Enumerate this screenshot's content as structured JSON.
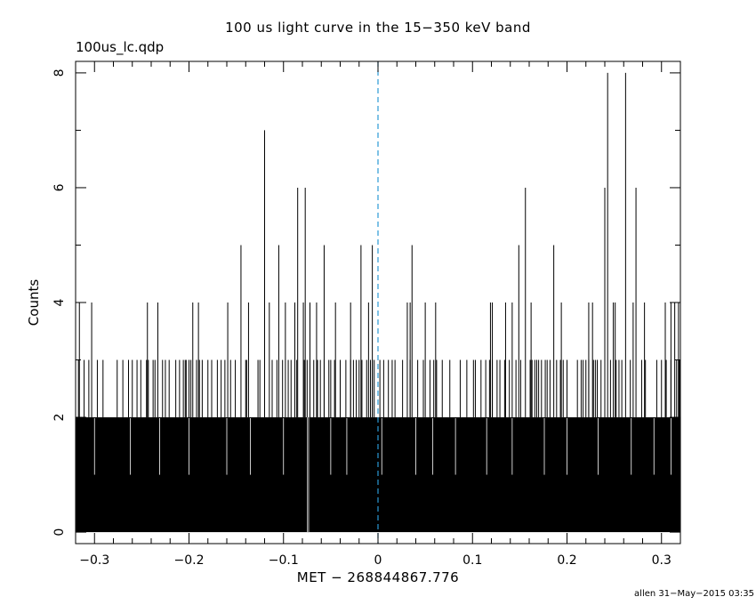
{
  "header": {
    "title": "100 us light curve in the 15−350 keV band",
    "subtitle": "100us_lc.qdp"
  },
  "footer": {
    "credit": "allen 31−May−2015 03:35"
  },
  "chart_data": {
    "type": "bar",
    "title": "100 us light curve in the 15−350 keV band",
    "subtitle": "100us_lc.qdp",
    "xlabel": "MET − 268844867.776",
    "ylabel": "Counts",
    "xlim": [
      -0.32,
      0.32
    ],
    "ylim": [
      -0.2,
      8.2
    ],
    "x_ticks": [
      "−0.3",
      "−0.2",
      "−0.1",
      "0",
      "0.1",
      "0.2",
      "0.3"
    ],
    "x_tick_values": [
      -0.3,
      -0.2,
      -0.1,
      0,
      0.1,
      0.2,
      0.3
    ],
    "y_ticks": [
      "0",
      "2",
      "4",
      "6",
      "8"
    ],
    "y_tick_values": [
      0,
      2,
      4,
      6,
      8
    ],
    "bin_width": 0.0001,
    "baseline_level": 2,
    "trigger_line": {
      "x": 0,
      "style": "dashed",
      "color": "#2a9ad6"
    },
    "gap": {
      "x": -0.074,
      "value": 0
    },
    "spikes_3_x": [
      -0.317,
      -0.311,
      -0.306,
      -0.297,
      -0.291,
      -0.276,
      -0.27,
      -0.264,
      -0.26,
      -0.255,
      -0.251,
      -0.245,
      -0.243,
      -0.238,
      -0.236,
      -0.228,
      -0.225,
      -0.221,
      -0.214,
      -0.21,
      -0.206,
      -0.204,
      -0.203,
      -0.2,
      -0.198,
      -0.192,
      -0.189,
      -0.186,
      -0.18,
      -0.176,
      -0.17,
      -0.166,
      -0.162,
      -0.156,
      -0.151,
      -0.14,
      -0.139,
      -0.127,
      -0.125,
      -0.112,
      -0.107,
      -0.101,
      -0.095,
      -0.092,
      -0.086,
      -0.078,
      -0.075,
      -0.068,
      -0.064,
      -0.061,
      -0.057,
      -0.052,
      -0.05,
      -0.046,
      -0.04,
      -0.034,
      -0.029,
      -0.026,
      -0.023,
      -0.02,
      -0.017,
      -0.012,
      -0.008,
      -0.006,
      -0.004,
      0.002,
      0.006,
      0.011,
      0.015,
      0.018,
      0.026,
      0.034,
      0.042,
      0.048,
      0.055,
      0.059,
      0.062,
      0.068,
      0.076,
      0.087,
      0.094,
      0.101,
      0.103,
      0.109,
      0.114,
      0.118,
      0.121,
      0.126,
      0.129,
      0.134,
      0.139,
      0.146,
      0.151,
      0.161,
      0.163,
      0.166,
      0.168,
      0.17,
      0.173,
      0.177,
      0.179,
      0.182,
      0.189,
      0.193,
      0.196,
      0.2,
      0.211,
      0.215,
      0.217,
      0.22,
      0.223,
      0.228,
      0.23,
      0.232,
      0.236,
      0.246,
      0.252,
      0.255,
      0.258,
      0.267,
      0.279,
      0.283,
      0.295,
      0.3,
      0.305,
      0.31,
      0.316,
      0.318,
      0.319
    ],
    "spikes_high": [
      {
        "x": -0.316,
        "value": 4
      },
      {
        "x": -0.303,
        "value": 4
      },
      {
        "x": -0.244,
        "value": 4
      },
      {
        "x": -0.233,
        "value": 4
      },
      {
        "x": -0.196,
        "value": 4
      },
      {
        "x": -0.19,
        "value": 4
      },
      {
        "x": -0.159,
        "value": 4
      },
      {
        "x": -0.145,
        "value": 5
      },
      {
        "x": -0.137,
        "value": 4
      },
      {
        "x": -0.12,
        "value": 7
      },
      {
        "x": -0.115,
        "value": 4
      },
      {
        "x": -0.105,
        "value": 5
      },
      {
        "x": -0.098,
        "value": 4
      },
      {
        "x": -0.088,
        "value": 4
      },
      {
        "x": -0.085,
        "value": 6
      },
      {
        "x": -0.079,
        "value": 4
      },
      {
        "x": -0.077,
        "value": 6
      },
      {
        "x": -0.072,
        "value": 4
      },
      {
        "x": -0.065,
        "value": 4
      },
      {
        "x": -0.057,
        "value": 5
      },
      {
        "x": -0.045,
        "value": 4
      },
      {
        "x": -0.029,
        "value": 4
      },
      {
        "x": -0.018,
        "value": 5
      },
      {
        "x": -0.01,
        "value": 4
      },
      {
        "x": -0.006,
        "value": 5
      },
      {
        "x": 0.031,
        "value": 4
      },
      {
        "x": 0.034,
        "value": 4
      },
      {
        "x": 0.036,
        "value": 5
      },
      {
        "x": 0.05,
        "value": 4
      },
      {
        "x": 0.061,
        "value": 4
      },
      {
        "x": 0.119,
        "value": 4
      },
      {
        "x": 0.121,
        "value": 4
      },
      {
        "x": 0.135,
        "value": 4
      },
      {
        "x": 0.142,
        "value": 4
      },
      {
        "x": 0.149,
        "value": 5
      },
      {
        "x": 0.156,
        "value": 6
      },
      {
        "x": 0.162,
        "value": 4
      },
      {
        "x": 0.186,
        "value": 5
      },
      {
        "x": 0.194,
        "value": 4
      },
      {
        "x": 0.223,
        "value": 4
      },
      {
        "x": 0.227,
        "value": 4
      },
      {
        "x": 0.24,
        "value": 6
      },
      {
        "x": 0.243,
        "value": 8
      },
      {
        "x": 0.249,
        "value": 4
      },
      {
        "x": 0.251,
        "value": 4
      },
      {
        "x": 0.262,
        "value": 8
      },
      {
        "x": 0.27,
        "value": 4
      },
      {
        "x": 0.273,
        "value": 6
      },
      {
        "x": 0.282,
        "value": 4
      },
      {
        "x": 0.304,
        "value": 4
      },
      {
        "x": 0.31,
        "value": 4
      },
      {
        "x": 0.314,
        "value": 4
      },
      {
        "x": 0.318,
        "value": 4
      }
    ]
  }
}
